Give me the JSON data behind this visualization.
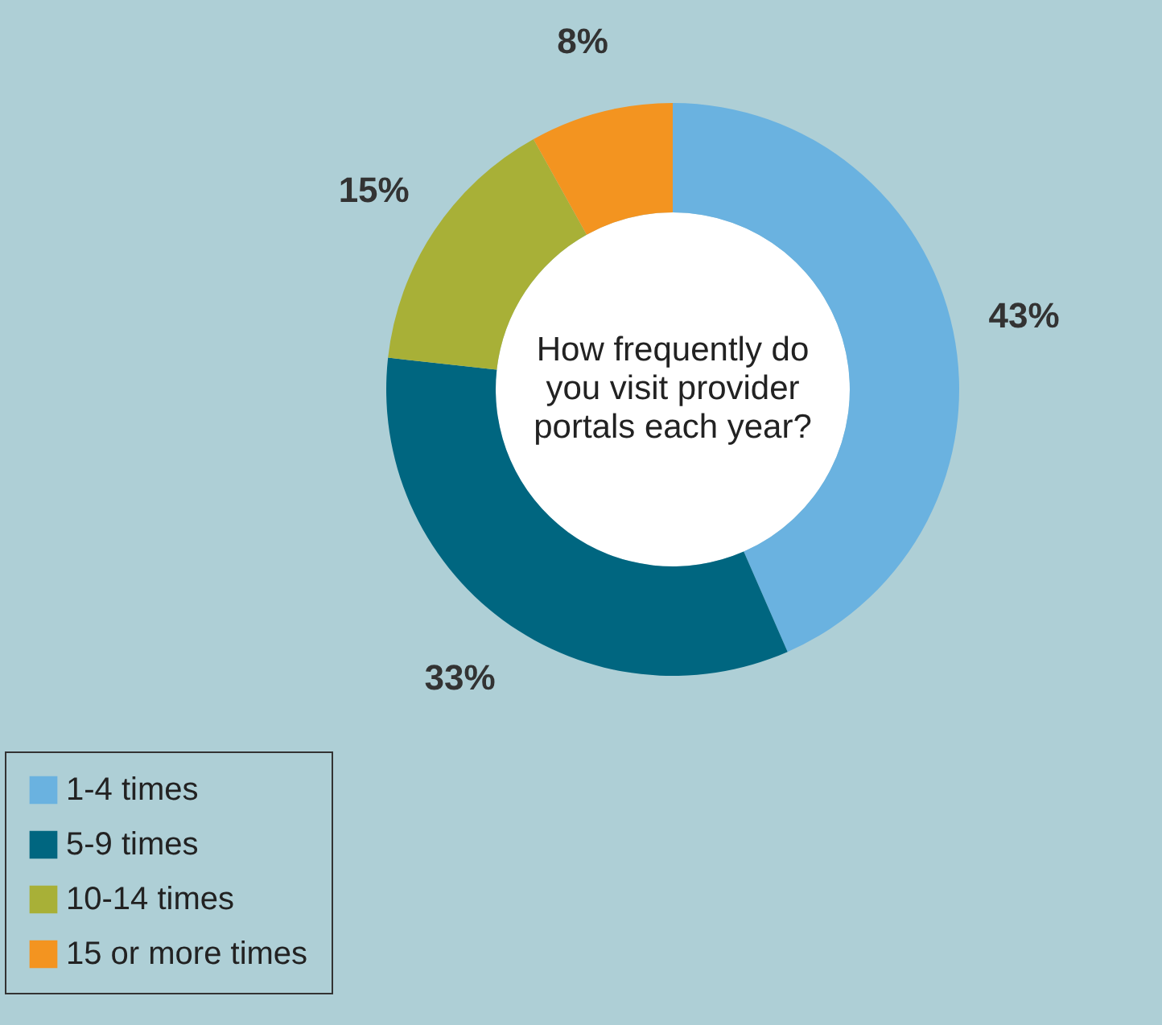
{
  "chart_data": {
    "type": "donut",
    "title": "How frequently do you visit provider portals each year?",
    "categories": [
      "1-4 times",
      "5-9 times",
      "10-14 times",
      "15 or more times"
    ],
    "values": [
      43,
      33,
      15,
      8
    ],
    "value_labels": [
      "43%",
      "33%",
      "15%",
      "8%"
    ],
    "colors": [
      "#6ab2e0",
      "#006680",
      "#a8b037",
      "#f39420"
    ],
    "legend": "bottom left"
  }
}
